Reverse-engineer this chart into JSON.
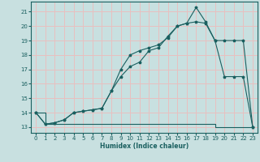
{
  "xlabel": "Humidex (Indice chaleur)",
  "bg_color": "#c8e0e0",
  "grid_color": "#e8c0c0",
  "line_color": "#1a6060",
  "xlim": [
    -0.5,
    23.5
  ],
  "ylim": [
    12.6,
    21.7
  ],
  "yticks": [
    13,
    14,
    15,
    16,
    17,
    18,
    19,
    20,
    21
  ],
  "xticks": [
    0,
    1,
    2,
    3,
    4,
    5,
    6,
    7,
    8,
    9,
    10,
    11,
    12,
    13,
    14,
    15,
    16,
    17,
    18,
    19,
    20,
    21,
    22,
    23
  ],
  "line1_x": [
    0,
    1,
    2,
    3,
    4,
    5,
    6,
    7,
    8,
    9,
    10,
    11,
    12,
    13,
    14,
    15,
    16,
    17,
    18,
    19,
    20,
    21,
    22,
    23
  ],
  "line1_y": [
    14.0,
    13.2,
    13.2,
    13.2,
    13.2,
    13.2,
    13.2,
    13.2,
    13.2,
    13.2,
    13.2,
    13.2,
    13.2,
    13.2,
    13.2,
    13.2,
    13.2,
    13.2,
    13.2,
    13.0,
    13.0,
    13.0,
    13.0,
    13.0
  ],
  "line2_x": [
    0,
    1,
    2,
    3,
    4,
    5,
    6,
    7,
    8,
    9,
    10,
    11,
    12,
    13,
    14,
    15,
    16,
    17,
    18,
    19,
    20,
    21,
    22,
    23
  ],
  "line2_y": [
    14.0,
    13.2,
    13.3,
    13.5,
    14.0,
    14.1,
    14.2,
    14.3,
    15.5,
    16.5,
    17.2,
    17.5,
    18.3,
    18.5,
    19.3,
    20.0,
    20.2,
    20.3,
    20.2,
    19.0,
    16.5,
    16.5,
    16.5,
    13.0
  ],
  "line3_x": [
    0,
    1,
    2,
    3,
    4,
    5,
    6,
    7,
    8,
    9,
    10,
    11,
    12,
    13,
    14,
    15,
    16,
    17,
    18,
    19,
    20,
    21,
    22,
    23
  ],
  "line3_y": [
    14.0,
    13.2,
    13.3,
    13.5,
    14.0,
    14.1,
    14.2,
    14.3,
    15.5,
    17.0,
    18.0,
    18.3,
    18.5,
    18.7,
    19.2,
    20.0,
    20.2,
    21.3,
    20.3,
    19.0,
    19.0,
    19.0,
    19.0,
    13.0
  ]
}
